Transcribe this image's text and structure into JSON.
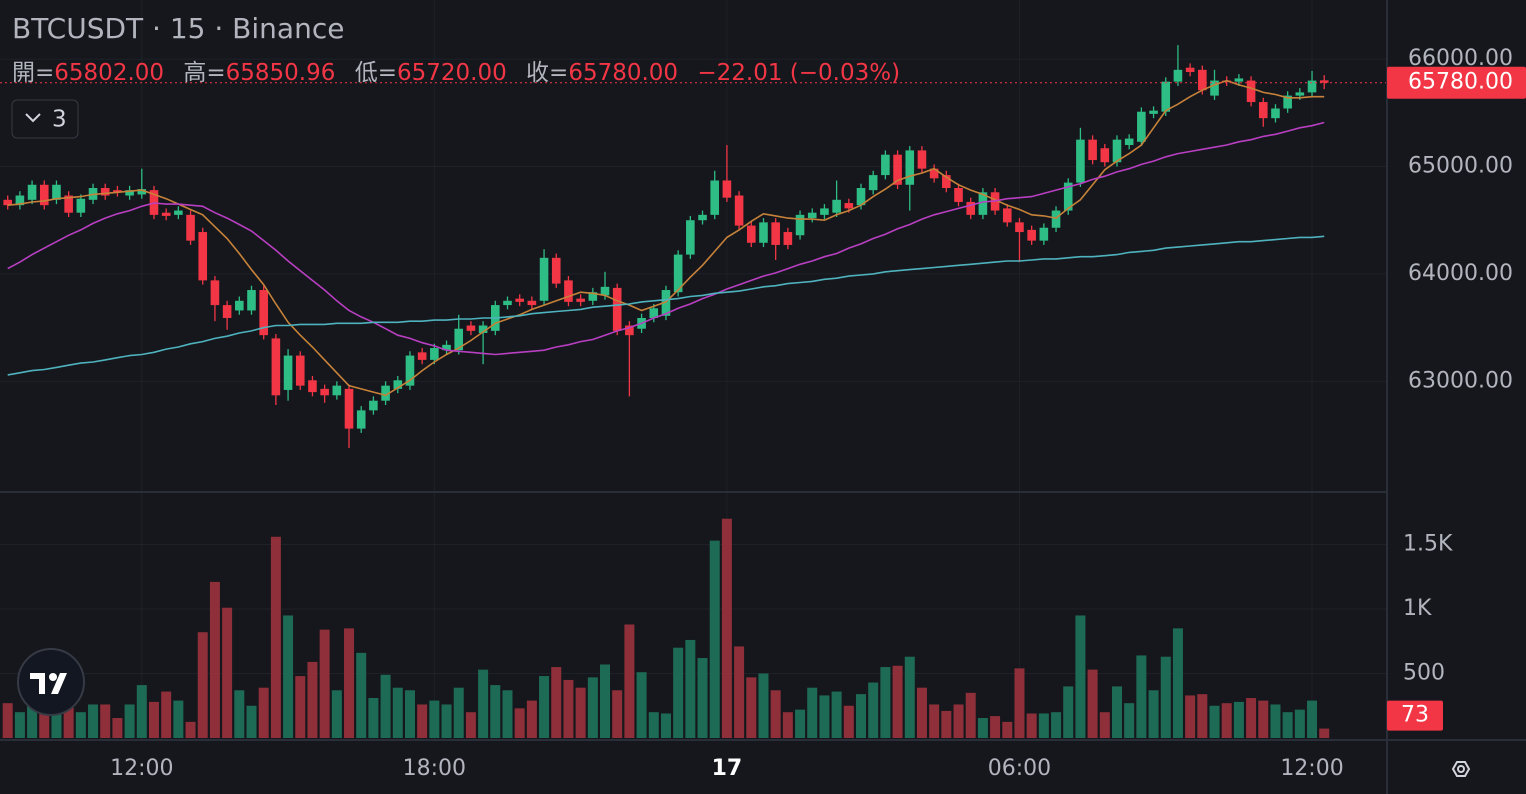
{
  "chart_data": {
    "type": "candlestick",
    "title": "BTCUSDT · 15 · Binance",
    "ohlc_labels": [
      "開=",
      "高=",
      "低=",
      "收="
    ],
    "ohlc_value_labels": [
      "65802.00",
      "65850.96",
      "65720.00",
      "65780.00"
    ],
    "change_label": "−22.01 (−0.03%)",
    "indicator_count": "3",
    "last_close_label": "65780.00",
    "last_volume_label": "73",
    "up_color": "#2ebd85",
    "down_color": "#f23645",
    "volume_up_color": "#1e6b55",
    "volume_down_color": "#8e2f39",
    "grid": true,
    "categories": [
      null,
      null,
      null,
      null,
      null,
      null,
      null,
      null,
      null,
      null,
      null,
      "12:00",
      null,
      null,
      null,
      null,
      null,
      null,
      null,
      null,
      null,
      null,
      null,
      null,
      null,
      null,
      null,
      null,
      null,
      null,
      null,
      null,
      null,
      null,
      null,
      "18:00",
      null,
      null,
      null,
      null,
      null,
      null,
      null,
      null,
      null,
      null,
      null,
      null,
      null,
      null,
      null,
      null,
      null,
      null,
      null,
      null,
      null,
      null,
      null,
      "17",
      null,
      null,
      null,
      null,
      null,
      null,
      null,
      null,
      null,
      null,
      null,
      null,
      null,
      null,
      null,
      null,
      null,
      null,
      null,
      null,
      null,
      null,
      null,
      "06:00",
      null,
      null,
      null,
      null,
      null,
      null,
      null,
      null,
      null,
      null,
      null,
      null,
      null,
      null,
      null,
      null,
      null,
      null,
      null,
      null,
      null,
      null,
      null,
      "12:00",
      null
    ],
    "open": [
      64690,
      64640,
      64690,
      64830,
      64690,
      64730,
      64570,
      64690,
      64800,
      64780,
      64730,
      64740,
      64780,
      64570,
      64550,
      64550,
      64390,
      63940,
      63710,
      63660,
      63660,
      63850,
      63400,
      62920,
      63240,
      63010,
      62930,
      62870,
      62930,
      62560,
      62730,
      62820,
      62930,
      62960,
      63270,
      63200,
      63290,
      63290,
      63520,
      63450,
      63470,
      63710,
      63770,
      63750,
      63750,
      64150,
      63940,
      63770,
      63750,
      63800,
      63870,
      63520,
      63490,
      63590,
      63610,
      63830,
      64180,
      64500,
      64550,
      64870,
      64730,
      64450,
      64290,
      64480,
      64390,
      64360,
      64520,
      64550,
      64570,
      64660,
      64640,
      64780,
      64920,
      65110,
      64830,
      65150,
      64980,
      64920,
      64800,
      64670,
      64550,
      64760,
      64610,
      64480,
      64410,
      64310,
      64430,
      64590,
      64850,
      65250,
      65170,
      65040,
      65200,
      65230,
      65490,
      65510,
      65790,
      65920,
      65900,
      65660,
      65800,
      65790,
      65800,
      65600,
      65450,
      65540,
      65660,
      65690,
      65802.0
    ],
    "high": [
      64730,
      64770,
      64870,
      64870,
      64870,
      64770,
      64740,
      64840,
      64840,
      64820,
      64820,
      64980,
      64820,
      64610,
      64630,
      64590,
      64430,
      63980,
      63750,
      63790,
      63890,
      63890,
      63440,
      63300,
      63280,
      63050,
      62970,
      63000,
      62970,
      62770,
      62860,
      63000,
      63050,
      63280,
      63310,
      63350,
      63380,
      63620,
      63560,
      63560,
      63750,
      63790,
      63810,
      63790,
      64230,
      64190,
      63980,
      63810,
      63870,
      64020,
      63910,
      63560,
      63630,
      63720,
      63890,
      64220,
      64540,
      64590,
      64960,
      65200,
      64770,
      64490,
      64520,
      64520,
      64430,
      64590,
      64610,
      64650,
      64870,
      64700,
      64840,
      64960,
      65150,
      65150,
      65190,
      65190,
      65020,
      64960,
      64840,
      64710,
      64800,
      64800,
      64650,
      64520,
      64450,
      64470,
      64630,
      64890,
      65360,
      65290,
      65210,
      65290,
      65300,
      65550,
      65560,
      65830,
      66130,
      65960,
      65940,
      65900,
      65840,
      65860,
      65840,
      65640,
      65580,
      65700,
      65730,
      65890,
      65850.96
    ],
    "low": [
      64600,
      64600,
      64650,
      64600,
      64650,
      64530,
      64530,
      64650,
      64690,
      64720,
      64690,
      64700,
      64510,
      64500,
      64510,
      64270,
      63900,
      63560,
      63480,
      63620,
      63620,
      63390,
      62780,
      62820,
      62920,
      62860,
      62800,
      62830,
      62380,
      62520,
      62690,
      62780,
      62890,
      62920,
      63160,
      63160,
      63250,
      63250,
      63430,
      63160,
      63430,
      63670,
      63700,
      63670,
      63710,
      63870,
      63700,
      63700,
      63710,
      63760,
      63430,
      62860,
      63450,
      63550,
      63570,
      63790,
      64140,
      64460,
      64510,
      64670,
      64410,
      64250,
      64250,
      64130,
      64230,
      64320,
      64480,
      64510,
      64530,
      64570,
      64600,
      64740,
      64880,
      64790,
      64590,
      64940,
      64850,
      64760,
      64630,
      64510,
      64510,
      64550,
      64440,
      64110,
      64270,
      64270,
      64390,
      64550,
      64810,
      65020,
      65000,
      65000,
      65160,
      65190,
      65450,
      65470,
      65750,
      65840,
      65670,
      65620,
      65750,
      65750,
      65560,
      65370,
      65410,
      65500,
      65620,
      65650,
      65720
    ],
    "close": [
      64640,
      64730,
      64830,
      64640,
      64830,
      64570,
      64700,
      64800,
      64730,
      64760,
      64780,
      64790,
      64550,
      64540,
      64590,
      64310,
      63940,
      63710,
      63590,
      63750,
      63850,
      63430,
      62870,
      63240,
      62960,
      62900,
      62870,
      62960,
      62560,
      62730,
      62820,
      62960,
      63010,
      63240,
      63200,
      63310,
      63340,
      63490,
      63470,
      63520,
      63710,
      63750,
      63740,
      63710,
      64150,
      63910,
      63740,
      63740,
      63830,
      63880,
      63470,
      63430,
      63590,
      63680,
      63850,
      64180,
      64500,
      64550,
      64870,
      64710,
      64450,
      64290,
      64480,
      64270,
      64270,
      64550,
      64570,
      64610,
      64690,
      64610,
      64800,
      64920,
      65110,
      64830,
      65150,
      64980,
      64890,
      64800,
      64670,
      64550,
      64760,
      64590,
      64480,
      64390,
      64310,
      64430,
      64590,
      64850,
      65250,
      65060,
      65040,
      65250,
      65260,
      65510,
      65520,
      65790,
      65900,
      65880,
      65710,
      65800,
      65790,
      65820,
      65600,
      65450,
      65540,
      65660,
      65690,
      65800,
      65780
    ],
    "volume": [
      270,
      200,
      290,
      260,
      370,
      280,
      200,
      260,
      260,
      155,
      260,
      410,
      280,
      360,
      290,
      125,
      820,
      1210,
      1010,
      370,
      250,
      390,
      1560,
      950,
      480,
      590,
      840,
      370,
      850,
      660,
      310,
      490,
      390,
      370,
      260,
      290,
      260,
      390,
      200,
      530,
      410,
      370,
      230,
      290,
      480,
      550,
      450,
      390,
      470,
      570,
      370,
      880,
      510,
      200,
      190,
      700,
      760,
      620,
      1530,
      1700,
      710,
      470,
      500,
      370,
      200,
      220,
      390,
      330,
      360,
      250,
      340,
      430,
      550,
      560,
      630,
      390,
      260,
      210,
      260,
      350,
      155,
      170,
      125,
      540,
      190,
      190,
      200,
      400,
      950,
      530,
      200,
      400,
      270,
      640,
      370,
      630,
      850,
      330,
      340,
      250,
      270,
      280,
      310,
      290,
      260,
      200,
      220,
      290,
      73
    ],
    "ma_series": [
      {
        "color": "#c7823a",
        "values": [
          64640,
          64650,
          64670,
          64680,
          64700,
          64710,
          64720,
          64740,
          64750,
          64760,
          64770,
          64780,
          64740,
          64700,
          64650,
          64600,
          64550,
          64440,
          64330,
          64190,
          64040,
          63900,
          63720,
          63550,
          63430,
          63320,
          63200,
          63080,
          62960,
          62930,
          62900,
          62870,
          62940,
          63010,
          63100,
          63180,
          63250,
          63310,
          63380,
          63460,
          63540,
          63580,
          63620,
          63670,
          63710,
          63750,
          63790,
          63830,
          63820,
          63800,
          63750,
          63710,
          63660,
          63700,
          63740,
          63850,
          63970,
          64080,
          64210,
          64340,
          64410,
          64490,
          64560,
          64540,
          64520,
          64510,
          64510,
          64500,
          64550,
          64590,
          64640,
          64720,
          64790,
          64870,
          64910,
          64940,
          64980,
          64900,
          64830,
          64780,
          64740,
          64690,
          64640,
          64600,
          64550,
          64540,
          64520,
          64610,
          64690,
          64830,
          64970,
          65050,
          65120,
          65200,
          65360,
          65520,
          65580,
          65650,
          65710,
          65760,
          65800,
          65760,
          65730,
          65690,
          65670,
          65640,
          65640,
          65650,
          65650
        ]
      },
      {
        "color": "#b93fc2",
        "values": [
          64050,
          64110,
          64180,
          64240,
          64300,
          64360,
          64410,
          64470,
          64520,
          64560,
          64590,
          64630,
          64660,
          64650,
          64650,
          64640,
          64630,
          64570,
          64520,
          64460,
          64400,
          64310,
          64220,
          64120,
          64030,
          63940,
          63850,
          63750,
          63660,
          63600,
          63550,
          63490,
          63430,
          63400,
          63360,
          63330,
          63290,
          63280,
          63270,
          63260,
          63250,
          63260,
          63270,
          63280,
          63290,
          63320,
          63340,
          63370,
          63390,
          63430,
          63470,
          63500,
          63540,
          63590,
          63630,
          63680,
          63720,
          63770,
          63810,
          63860,
          63900,
          63940,
          63980,
          64010,
          64050,
          64090,
          64120,
          64160,
          64190,
          64240,
          64280,
          64330,
          64370,
          64420,
          64460,
          64510,
          64550,
          64580,
          64610,
          64640,
          64670,
          64680,
          64700,
          64710,
          64720,
          64750,
          64780,
          64810,
          64840,
          64880,
          64910,
          64950,
          64980,
          65020,
          65050,
          65090,
          65120,
          65140,
          65160,
          65180,
          65200,
          65230,
          65250,
          65280,
          65300,
          65330,
          65360,
          65380,
          65410
        ]
      },
      {
        "color": "#4fb3bf",
        "values": [
          63060,
          63080,
          63100,
          63110,
          63130,
          63150,
          63170,
          63180,
          63200,
          63220,
          63240,
          63250,
          63270,
          63300,
          63320,
          63350,
          63370,
          63400,
          63420,
          63450,
          63470,
          63500,
          63520,
          63520,
          63530,
          63530,
          63530,
          63540,
          63540,
          63540,
          63550,
          63550,
          63550,
          63560,
          63560,
          63570,
          63570,
          63580,
          63580,
          63590,
          63590,
          63600,
          63610,
          63630,
          63640,
          63650,
          63660,
          63670,
          63690,
          63700,
          63710,
          63720,
          63740,
          63750,
          63760,
          63770,
          63790,
          63800,
          63820,
          63830,
          63840,
          63860,
          63880,
          63890,
          63910,
          63920,
          63930,
          63950,
          63960,
          63980,
          63990,
          64000,
          64020,
          64030,
          64040,
          64050,
          64060,
          64070,
          64080,
          64090,
          64100,
          64110,
          64120,
          64120,
          64130,
          64140,
          64140,
          64150,
          64160,
          64160,
          64170,
          64180,
          64200,
          64210,
          64220,
          64240,
          64250,
          64260,
          64270,
          64280,
          64290,
          64300,
          64300,
          64310,
          64320,
          64330,
          64340,
          64340,
          64350
        ]
      }
    ],
    "ylim": [
      61970,
      66550
    ],
    "yticks": [
      {
        "value": 63000,
        "label": "63000.00"
      },
      {
        "value": 64000,
        "label": "64000.00"
      },
      {
        "value": 65000,
        "label": "65000.00"
      },
      {
        "value": 66000,
        "label": "66000.00"
      }
    ],
    "volume_lim": [
      0,
      1907
    ],
    "volume_ticks": [
      500,
      {
        "value": 1000,
        "label": "1K"
      },
      {
        "value": 1500,
        "label": "1.5K"
      }
    ]
  }
}
